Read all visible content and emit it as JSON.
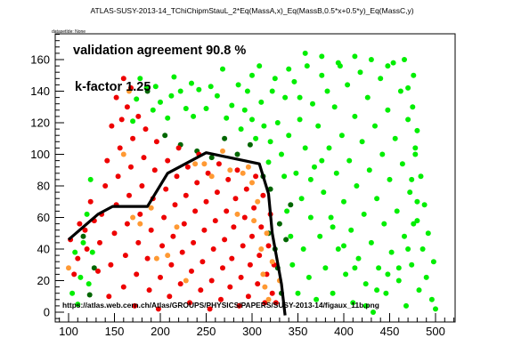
{
  "page": {
    "title": "ATLAS-SUSY-2013-14_TChiChipmStauL_2*Eq(MassA,x)_Eq(MassB,0.5*x+0.5*y)_Eq(MassC,y)",
    "dataset_label": "datasetIde: None"
  },
  "chart_data": {
    "type": "scatter",
    "title": "ATLAS-SUSY-2013-14_TChiChipmStauL_2*Eq(MassA,x)_Eq(MassB,0.5*x+0.5*y)_Eq(MassC,y)",
    "xlabel": "",
    "ylabel": "",
    "xlim": [
      85,
      520
    ],
    "ylim": [
      -6,
      176
    ],
    "xticks": [
      100,
      150,
      200,
      250,
      300,
      350,
      400,
      450,
      500
    ],
    "yticks": [
      0,
      20,
      40,
      60,
      80,
      100,
      120,
      140,
      160
    ],
    "grid": false,
    "annotations": {
      "agreement": "validation agreement 90.8 %",
      "kfactor": "k-factor 1.25",
      "url": "https://atlas.web.cern.ch/Atlas/GROUPS/PHYSICS/PAPERS/SUSY-2013-14/figaux_11b.png"
    },
    "colors": {
      "bright_green": "#00ee00",
      "dark_green": "#006600",
      "red": "#ee0000",
      "orange": "#ff9933",
      "contour": "#000000"
    },
    "series": [
      {
        "color": "#00ee00",
        "points": [
          [
            110,
            5
          ],
          [
            113,
            22
          ],
          [
            116,
            44
          ],
          [
            120,
            62
          ],
          [
            124,
            84
          ],
          [
            107,
            38
          ],
          [
            104,
            12
          ],
          [
            122,
            18
          ],
          [
            126,
            38
          ],
          [
            170,
            121
          ],
          [
            174,
            135
          ],
          [
            178,
            148
          ],
          [
            185,
            142
          ],
          [
            192,
            128
          ],
          [
            195,
            143
          ],
          [
            200,
            133
          ],
          [
            208,
            123
          ],
          [
            212,
            137
          ],
          [
            215,
            149
          ],
          [
            222,
            140
          ],
          [
            228,
            129
          ],
          [
            234,
            145
          ],
          [
            236,
            124
          ],
          [
            242,
            141
          ],
          [
            250,
            129
          ],
          [
            255,
            143
          ],
          [
            262,
            137
          ],
          [
            268,
            154
          ],
          [
            272,
            123
          ],
          [
            278,
            131
          ],
          [
            285,
            144
          ],
          [
            288,
            116
          ],
          [
            292,
            128
          ],
          [
            295,
            140
          ],
          [
            300,
            150
          ],
          [
            300,
            122
          ],
          [
            304,
            110
          ],
          [
            310,
            133
          ],
          [
            313,
            118
          ],
          [
            318,
            95
          ],
          [
            320,
            108
          ],
          [
            325,
            148
          ],
          [
            328,
            120
          ],
          [
            332,
            100
          ],
          [
            335,
            86
          ],
          [
            336,
            136
          ],
          [
            338,
            64
          ],
          [
            340,
            112
          ],
          [
            342,
            48
          ],
          [
            344,
            30
          ],
          [
            346,
            146
          ],
          [
            348,
            88
          ],
          [
            350,
            12
          ],
          [
            352,
            122
          ],
          [
            354,
            72
          ],
          [
            356,
            40
          ],
          [
            358,
            104
          ],
          [
            360,
            156
          ],
          [
            362,
            22
          ],
          [
            364,
            60
          ],
          [
            366,
            132
          ],
          [
            368,
            92
          ],
          [
            370,
            8
          ],
          [
            372,
            118
          ],
          [
            374,
            48
          ],
          [
            376,
            150
          ],
          [
            378,
            76
          ],
          [
            380,
            28
          ],
          [
            382,
            140
          ],
          [
            384,
            104
          ],
          [
            386,
            60
          ],
          [
            388,
            12
          ],
          [
            390,
            130
          ],
          [
            392,
            88
          ],
          [
            394,
            40
          ],
          [
            396,
            156
          ],
          [
            398,
            112
          ],
          [
            400,
            70
          ],
          [
            402,
            24
          ],
          [
            404,
            144
          ],
          [
            406,
            96
          ],
          [
            408,
            52
          ],
          [
            410,
            6
          ],
          [
            412,
            124
          ],
          [
            414,
            80
          ],
          [
            416,
            34
          ],
          [
            418,
            152
          ],
          [
            420,
            108
          ],
          [
            422,
            62
          ],
          [
            424,
            18
          ],
          [
            426,
            136
          ],
          [
            428,
            90
          ],
          [
            430,
            44
          ],
          [
            432,
            0
          ],
          [
            434,
            118
          ],
          [
            436,
            72
          ],
          [
            438,
            28
          ],
          [
            440,
            148
          ],
          [
            442,
            100
          ],
          [
            444,
            56
          ],
          [
            446,
            12
          ],
          [
            448,
            128
          ],
          [
            450,
            84
          ],
          [
            452,
            38
          ],
          [
            454,
            158
          ],
          [
            456,
            110
          ],
          [
            458,
            64
          ],
          [
            460,
            20
          ],
          [
            462,
            140
          ],
          [
            464,
            94
          ],
          [
            466,
            48
          ],
          [
            468,
            4
          ],
          [
            470,
            122
          ],
          [
            472,
            76
          ],
          [
            474,
            30
          ],
          [
            476,
            150
          ],
          [
            478,
            104
          ],
          [
            480,
            58
          ],
          [
            482,
            14
          ],
          [
            484,
            86
          ],
          [
            486,
            40
          ],
          [
            488,
            68
          ],
          [
            490,
            22
          ],
          [
            492,
            50
          ],
          [
            496,
            8
          ],
          [
            498,
            32
          ],
          [
            500,
            2
          ],
          [
            358,
            164
          ],
          [
            376,
            162
          ],
          [
            394,
            158
          ],
          [
            412,
            162
          ],
          [
            430,
            160
          ],
          [
            448,
            156
          ],
          [
            466,
            160
          ],
          [
            470,
            142
          ],
          [
            475,
            130
          ],
          [
            480,
            115
          ],
          [
            478,
            100
          ],
          [
            474,
            84
          ],
          [
            480,
            70
          ],
          [
            476,
            56
          ],
          [
            470,
            40
          ],
          [
            460,
            28
          ],
          [
            448,
            24
          ],
          [
            436,
            14
          ],
          [
            424,
            4
          ],
          [
            412,
            28
          ],
          [
            400,
            42
          ],
          [
            388,
            54
          ],
          [
            376,
            96
          ],
          [
            364,
            84
          ],
          [
            352,
            136
          ],
          [
            340,
            154
          ],
          [
            322,
            140
          ],
          [
            308,
            156
          ]
        ]
      },
      {
        "color": "#006600",
        "points": [
          [
            116,
            48
          ],
          [
            123,
            11
          ],
          [
            128,
            28
          ],
          [
            186,
            140
          ],
          [
            205,
            112
          ],
          [
            222,
            106
          ],
          [
            240,
            102
          ],
          [
            256,
            98
          ],
          [
            270,
            110
          ],
          [
            284,
            100
          ],
          [
            298,
            106
          ],
          [
            312,
            86
          ],
          [
            320,
            78
          ],
          [
            318,
            50
          ],
          [
            325,
            40
          ],
          [
            328,
            28
          ],
          [
            330,
            56
          ],
          [
            332,
            12
          ],
          [
            337,
            46
          ],
          [
            342,
            68
          ]
        ]
      },
      {
        "color": "#ee0000",
        "points": [
          [
            110,
            34
          ],
          [
            118,
            52
          ],
          [
            124,
            70
          ],
          [
            132,
            26
          ],
          [
            134,
            44
          ],
          [
            136,
            62
          ],
          [
            140,
            80
          ],
          [
            142,
            96
          ],
          [
            144,
            10
          ],
          [
            146,
            30
          ],
          [
            150,
            50
          ],
          [
            152,
            68
          ],
          [
            154,
            86
          ],
          [
            156,
            104
          ],
          [
            158,
            122
          ],
          [
            160,
            16
          ],
          [
            162,
            36
          ],
          [
            164,
            56
          ],
          [
            166,
            74
          ],
          [
            168,
            92
          ],
          [
            170,
            110
          ],
          [
            172,
            4
          ],
          [
            174,
            24
          ],
          [
            176,
            44
          ],
          [
            178,
            62
          ],
          [
            180,
            80
          ],
          [
            182,
            98
          ],
          [
            184,
            116
          ],
          [
            186,
            34
          ],
          [
            188,
            14
          ],
          [
            190,
            52
          ],
          [
            192,
            72
          ],
          [
            194,
            90
          ],
          [
            196,
            108
          ],
          [
            198,
            2
          ],
          [
            200,
            22
          ],
          [
            202,
            42
          ],
          [
            204,
            60
          ],
          [
            206,
            78
          ],
          [
            208,
            96
          ],
          [
            210,
            10
          ],
          [
            212,
            30
          ],
          [
            214,
            48
          ],
          [
            216,
            68
          ],
          [
            218,
            86
          ],
          [
            220,
            104
          ],
          [
            222,
            18
          ],
          [
            224,
            38
          ],
          [
            226,
            56
          ],
          [
            228,
            74
          ],
          [
            230,
            92
          ],
          [
            232,
            6
          ],
          [
            234,
            26
          ],
          [
            236,
            44
          ],
          [
            238,
            64
          ],
          [
            240,
            82
          ],
          [
            242,
            100
          ],
          [
            244,
            14
          ],
          [
            246,
            32
          ],
          [
            248,
            52
          ],
          [
            250,
            70
          ],
          [
            252,
            88
          ],
          [
            254,
            2
          ],
          [
            256,
            20
          ],
          [
            258,
            40
          ],
          [
            260,
            58
          ],
          [
            262,
            76
          ],
          [
            264,
            94
          ],
          [
            266,
            8
          ],
          [
            268,
            28
          ],
          [
            270,
            46
          ],
          [
            272,
            64
          ],
          [
            274,
            84
          ],
          [
            276,
            16
          ],
          [
            278,
            34
          ],
          [
            280,
            54
          ],
          [
            282,
            72
          ],
          [
            284,
            90
          ],
          [
            286,
            4
          ],
          [
            288,
            22
          ],
          [
            290,
            42
          ],
          [
            292,
            60
          ],
          [
            294,
            78
          ],
          [
            296,
            10
          ],
          [
            298,
            30
          ],
          [
            300,
            48
          ],
          [
            302,
            66
          ],
          [
            304,
            86
          ],
          [
            306,
            18
          ],
          [
            308,
            36
          ],
          [
            310,
            54
          ],
          [
            312,
            74
          ],
          [
            314,
            6
          ],
          [
            316,
            24
          ],
          [
            318,
            42
          ],
          [
            320,
            62
          ],
          [
            322,
            12
          ],
          [
            324,
            30
          ],
          [
            326,
            6
          ],
          [
            147,
            118
          ],
          [
            152,
            136
          ],
          [
            160,
            148
          ],
          [
            164,
            130
          ],
          [
            168,
            142
          ],
          [
            176,
            124
          ],
          [
            120,
            40
          ],
          [
            128,
            58
          ],
          [
            112,
            56
          ],
          [
            102,
            46
          ],
          [
            106,
            24
          ]
        ]
      },
      {
        "color": "#ff9933",
        "points": [
          [
            100,
            28
          ],
          [
            160,
            100
          ],
          [
            166,
            140
          ],
          [
            170,
            60
          ],
          [
            178,
            56
          ],
          [
            190,
            66
          ],
          [
            196,
            34
          ],
          [
            208,
            36
          ],
          [
            218,
            54
          ],
          [
            228,
            20
          ],
          [
            238,
            94
          ],
          [
            248,
            94
          ],
          [
            256,
            86
          ],
          [
            268,
            102
          ],
          [
            276,
            90
          ],
          [
            284,
            62
          ],
          [
            290,
            88
          ],
          [
            296,
            92
          ],
          [
            300,
            82
          ],
          [
            302,
            58
          ],
          [
            306,
            70
          ],
          [
            310,
            40
          ],
          [
            312,
            24
          ],
          [
            314,
            16
          ],
          [
            316,
            50
          ],
          [
            318,
            8
          ],
          [
            322,
            32
          ],
          [
            330,
            20
          ]
        ]
      }
    ],
    "contour": [
      [
        100,
        46
      ],
      [
        132,
        62
      ],
      [
        148,
        67
      ],
      [
        186,
        67
      ],
      [
        208,
        88
      ],
      [
        250,
        101
      ],
      [
        308,
        94
      ],
      [
        318,
        75
      ],
      [
        322,
        50
      ],
      [
        332,
        18
      ],
      [
        336,
        -2
      ]
    ]
  }
}
